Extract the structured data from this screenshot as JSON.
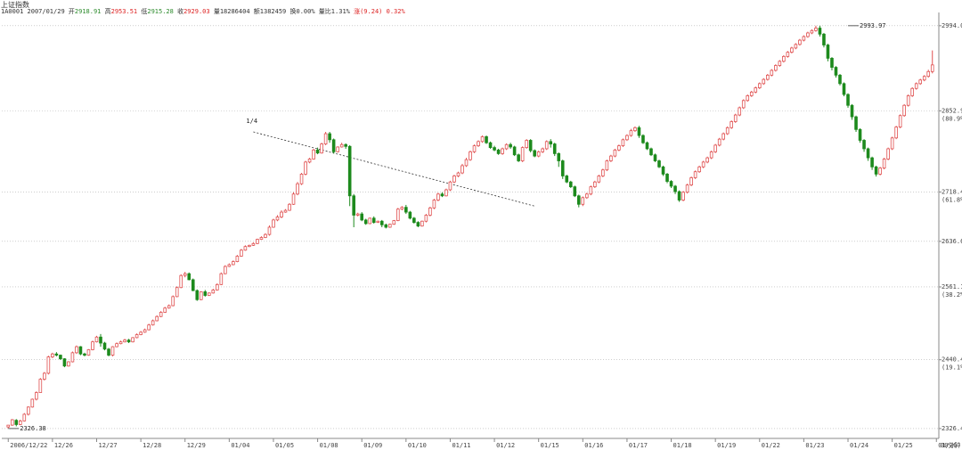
{
  "header": {
    "title": "上证指数",
    "code": "1A0001",
    "date": "2007/01/29",
    "open_label": "开",
    "open": "2918.91",
    "high_label": "高",
    "high": "2953.51",
    "low_label": "低",
    "low": "2915.28",
    "close_label": "收",
    "close": "2929.03",
    "volume_label": "量",
    "volume": "18286404",
    "amount_label": "额",
    "amount": "1382459",
    "chg_label": "换",
    "chg": "0.00%",
    "ratio_label": "量比",
    "ratio": "1.31%",
    "change_label": "涨",
    "change": "(9.24)",
    "change_pct": "0.32%"
  },
  "chart_data": {
    "type": "candlestick",
    "y_axis_ticks": [
      {
        "value": 2994.0,
        "label": "2994.0",
        "pct": ""
      },
      {
        "value": 2852.9,
        "label": "2852.9",
        "pct": "80.9%"
      },
      {
        "value": 2718.4,
        "label": "2718.4",
        "pct": "61.8%"
      },
      {
        "value": 2636.6,
        "label": "2636.6",
        "pct": ""
      },
      {
        "value": 2561.1,
        "label": "2561.1",
        "pct": "38.2%"
      },
      {
        "value": 2440.4,
        "label": "2440.4",
        "pct": "19.1%"
      },
      {
        "value": 2326.4,
        "label": "2326.4",
        "pct": ""
      }
    ],
    "ylim": [
      2310,
      3010
    ],
    "x_labels": [
      {
        "i": 0,
        "label": "2006/12/22"
      },
      {
        "i": 11,
        "label": "12/26"
      },
      {
        "i": 22,
        "label": "12/27"
      },
      {
        "i": 33,
        "label": "12/28"
      },
      {
        "i": 44,
        "label": "12/29"
      },
      {
        "i": 55,
        "label": "01/04"
      },
      {
        "i": 66,
        "label": "01/05"
      },
      {
        "i": 77,
        "label": "01/08"
      },
      {
        "i": 88,
        "label": "01/09"
      },
      {
        "i": 99,
        "label": "01/10"
      },
      {
        "i": 110,
        "label": "01/11"
      },
      {
        "i": 121,
        "label": "01/12"
      },
      {
        "i": 132,
        "label": "01/15"
      },
      {
        "i": 143,
        "label": "01/16"
      },
      {
        "i": 154,
        "label": "01/17"
      },
      {
        "i": 165,
        "label": "01/18"
      },
      {
        "i": 176,
        "label": "01/19"
      },
      {
        "i": 187,
        "label": "01/22"
      },
      {
        "i": 198,
        "label": "01/23"
      },
      {
        "i": 209,
        "label": "01/24"
      },
      {
        "i": 220,
        "label": "01/25"
      },
      {
        "i": 231,
        "label": "01/26"
      }
    ],
    "period_label": "30分钟",
    "annotations": [
      {
        "type": "max",
        "i": 209,
        "value": 2993.97,
        "label": "2993.97"
      },
      {
        "type": "min",
        "i": 0,
        "value": 2326.38,
        "label": "2326.38"
      }
    ],
    "trendline": {
      "start_i": 61,
      "start_v": 2818,
      "end_i": 131,
      "end_v": 2695,
      "label": "1/4"
    },
    "candles": [
      [
        2329,
        2332,
        2332,
        2327
      ],
      [
        2332,
        2341,
        2342,
        2331
      ],
      [
        2340,
        2333,
        2342,
        2330
      ],
      [
        2333,
        2339,
        2341,
        2332
      ],
      [
        2339,
        2350,
        2352,
        2338
      ],
      [
        2350,
        2362,
        2363,
        2348
      ],
      [
        2362,
        2375,
        2376,
        2361
      ],
      [
        2375,
        2386,
        2388,
        2373
      ],
      [
        2386,
        2408,
        2410,
        2386
      ],
      [
        2408,
        2418,
        2420,
        2406
      ],
      [
        2418,
        2445,
        2447,
        2416
      ],
      [
        2445,
        2450,
        2452,
        2443
      ],
      [
        2450,
        2448,
        2453,
        2446
      ],
      [
        2448,
        2442,
        2449,
        2440
      ],
      [
        2442,
        2430,
        2443,
        2428
      ],
      [
        2430,
        2437,
        2438,
        2429
      ],
      [
        2437,
        2452,
        2454,
        2436
      ],
      [
        2452,
        2462,
        2464,
        2450
      ],
      [
        2462,
        2450,
        2463,
        2448
      ],
      [
        2450,
        2448,
        2452,
        2446
      ],
      [
        2448,
        2457,
        2458,
        2447
      ],
      [
        2457,
        2470,
        2472,
        2456
      ],
      [
        2470,
        2478,
        2480,
        2469
      ],
      [
        2478,
        2468,
        2483,
        2462
      ],
      [
        2468,
        2458,
        2470,
        2456
      ],
      [
        2458,
        2448,
        2460,
        2446
      ],
      [
        2448,
        2462,
        2463,
        2446
      ],
      [
        2462,
        2467,
        2469,
        2461
      ],
      [
        2467,
        2470,
        2472,
        2466
      ],
      [
        2470,
        2473,
        2475,
        2469
      ],
      [
        2473,
        2470,
        2475,
        2468
      ],
      [
        2470,
        2477,
        2478,
        2469
      ],
      [
        2477,
        2482,
        2484,
        2476
      ],
      [
        2482,
        2486,
        2488,
        2481
      ],
      [
        2486,
        2490,
        2492,
        2485
      ],
      [
        2490,
        2498,
        2500,
        2489
      ],
      [
        2498,
        2505,
        2507,
        2497
      ],
      [
        2505,
        2512,
        2514,
        2504
      ],
      [
        2512,
        2519,
        2521,
        2511
      ],
      [
        2519,
        2526,
        2528,
        2518
      ],
      [
        2526,
        2530,
        2532,
        2525
      ],
      [
        2530,
        2545,
        2547,
        2529
      ],
      [
        2545,
        2560,
        2562,
        2544
      ],
      [
        2560,
        2580,
        2582,
        2559
      ],
      [
        2580,
        2583,
        2586,
        2577
      ],
      [
        2583,
        2573,
        2585,
        2572
      ],
      [
        2573,
        2555,
        2575,
        2554
      ],
      [
        2555,
        2540,
        2557,
        2538
      ],
      [
        2540,
        2553,
        2554,
        2539
      ],
      [
        2553,
        2547,
        2556,
        2545
      ],
      [
        2547,
        2551,
        2552,
        2546
      ],
      [
        2551,
        2556,
        2558,
        2550
      ],
      [
        2556,
        2565,
        2567,
        2555
      ],
      [
        2565,
        2583,
        2585,
        2564
      ],
      [
        2583,
        2595,
        2597,
        2582
      ],
      [
        2595,
        2598,
        2600,
        2594
      ],
      [
        2598,
        2603,
        2605,
        2597
      ],
      [
        2603,
        2612,
        2614,
        2602
      ],
      [
        2612,
        2622,
        2624,
        2611
      ],
      [
        2622,
        2628,
        2630,
        2621
      ],
      [
        2628,
        2630,
        2631,
        2627
      ],
      [
        2630,
        2633,
        2635,
        2629
      ],
      [
        2633,
        2640,
        2641,
        2632
      ],
      [
        2640,
        2643,
        2645,
        2639
      ],
      [
        2643,
        2648,
        2650,
        2642
      ],
      [
        2648,
        2660,
        2663,
        2646
      ],
      [
        2660,
        2672,
        2674,
        2659
      ],
      [
        2672,
        2677,
        2680,
        2670
      ],
      [
        2677,
        2685,
        2688,
        2675
      ],
      [
        2685,
        2688,
        2690,
        2684
      ],
      [
        2688,
        2698,
        2700,
        2687
      ],
      [
        2698,
        2715,
        2718,
        2697
      ],
      [
        2715,
        2732,
        2735,
        2713
      ],
      [
        2732,
        2748,
        2750,
        2730
      ],
      [
        2748,
        2768,
        2770,
        2746
      ],
      [
        2768,
        2773,
        2775,
        2766
      ],
      [
        2773,
        2788,
        2790,
        2772
      ],
      [
        2788,
        2783,
        2792,
        2781
      ],
      [
        2783,
        2798,
        2800,
        2782
      ],
      [
        2798,
        2815,
        2818,
        2796
      ],
      [
        2815,
        2805,
        2818,
        2800
      ],
      [
        2805,
        2785,
        2807,
        2782
      ],
      [
        2785,
        2793,
        2794,
        2784
      ],
      [
        2793,
        2797,
        2800,
        2792
      ],
      [
        2797,
        2794,
        2799,
        2790
      ],
      [
        2794,
        2712,
        2796,
        2695
      ],
      [
        2712,
        2680,
        2715,
        2660
      ],
      [
        2680,
        2682,
        2684,
        2678
      ],
      [
        2682,
        2672,
        2685,
        2670
      ],
      [
        2672,
        2666,
        2674,
        2664
      ],
      [
        2666,
        2675,
        2676,
        2665
      ],
      [
        2675,
        2668,
        2678,
        2666
      ],
      [
        2668,
        2670,
        2671,
        2667
      ],
      [
        2670,
        2664,
        2672,
        2660
      ],
      [
        2664,
        2660,
        2666,
        2658
      ],
      [
        2660,
        2665,
        2666,
        2659
      ],
      [
        2665,
        2671,
        2672,
        2664
      ],
      [
        2671,
        2690,
        2692,
        2670
      ],
      [
        2690,
        2693,
        2695,
        2688
      ],
      [
        2693,
        2685,
        2697,
        2682
      ],
      [
        2685,
        2675,
        2687,
        2673
      ],
      [
        2675,
        2668,
        2677,
        2666
      ],
      [
        2668,
        2662,
        2670,
        2660
      ],
      [
        2662,
        2670,
        2671,
        2661
      ],
      [
        2670,
        2680,
        2682,
        2668
      ],
      [
        2680,
        2692,
        2694,
        2678
      ],
      [
        2692,
        2705,
        2707,
        2690
      ],
      [
        2705,
        2715,
        2717,
        2703
      ],
      [
        2715,
        2712,
        2718,
        2710
      ],
      [
        2712,
        2722,
        2724,
        2711
      ],
      [
        2722,
        2735,
        2737,
        2720
      ],
      [
        2735,
        2745,
        2747,
        2733
      ],
      [
        2745,
        2750,
        2752,
        2743
      ],
      [
        2750,
        2762,
        2765,
        2748
      ],
      [
        2762,
        2772,
        2775,
        2760
      ],
      [
        2772,
        2785,
        2787,
        2770
      ],
      [
        2785,
        2795,
        2797,
        2783
      ],
      [
        2795,
        2802,
        2804,
        2793
      ],
      [
        2802,
        2810,
        2812,
        2800
      ],
      [
        2810,
        2800,
        2812,
        2798
      ],
      [
        2800,
        2792,
        2802,
        2790
      ],
      [
        2792,
        2788,
        2795,
        2786
      ],
      [
        2788,
        2782,
        2790,
        2780
      ],
      [
        2782,
        2790,
        2792,
        2780
      ],
      [
        2790,
        2797,
        2799,
        2788
      ],
      [
        2797,
        2793,
        2800,
        2790
      ],
      [
        2793,
        2780,
        2795,
        2778
      ],
      [
        2780,
        2770,
        2782,
        2768
      ],
      [
        2770,
        2792,
        2794,
        2768
      ],
      [
        2792,
        2804,
        2806,
        2790
      ],
      [
        2804,
        2787,
        2806,
        2784
      ],
      [
        2787,
        2778,
        2789,
        2776
      ],
      [
        2778,
        2785,
        2787,
        2776
      ],
      [
        2785,
        2790,
        2792,
        2783
      ],
      [
        2790,
        2802,
        2804,
        2788
      ],
      [
        2802,
        2798,
        2806,
        2792
      ],
      [
        2798,
        2782,
        2800,
        2778
      ],
      [
        2782,
        2770,
        2784,
        2760
      ],
      [
        2770,
        2745,
        2772,
        2740
      ],
      [
        2745,
        2735,
        2747,
        2733
      ],
      [
        2735,
        2727,
        2737,
        2725
      ],
      [
        2727,
        2712,
        2729,
        2710
      ],
      [
        2712,
        2698,
        2714,
        2693
      ],
      [
        2698,
        2709,
        2711,
        2695
      ],
      [
        2709,
        2715,
        2717,
        2707
      ],
      [
        2715,
        2727,
        2729,
        2713
      ],
      [
        2727,
        2735,
        2737,
        2725
      ],
      [
        2735,
        2745,
        2747,
        2733
      ],
      [
        2745,
        2755,
        2757,
        2743
      ],
      [
        2755,
        2770,
        2772,
        2753
      ],
      [
        2770,
        2778,
        2780,
        2768
      ],
      [
        2778,
        2788,
        2790,
        2776
      ],
      [
        2788,
        2795,
        2797,
        2786
      ],
      [
        2795,
        2805,
        2807,
        2793
      ],
      [
        2805,
        2812,
        2814,
        2803
      ],
      [
        2812,
        2820,
        2823,
        2810
      ],
      [
        2820,
        2825,
        2827,
        2818
      ],
      [
        2825,
        2812,
        2828,
        2808
      ],
      [
        2812,
        2800,
        2814,
        2798
      ],
      [
        2800,
        2790,
        2802,
        2788
      ],
      [
        2790,
        2780,
        2792,
        2778
      ],
      [
        2780,
        2770,
        2782,
        2768
      ],
      [
        2770,
        2760,
        2772,
        2758
      ],
      [
        2760,
        2748,
        2762,
        2745
      ],
      [
        2748,
        2736,
        2750,
        2733
      ],
      [
        2736,
        2728,
        2738,
        2725
      ],
      [
        2728,
        2719,
        2730,
        2715
      ],
      [
        2719,
        2705,
        2721,
        2702
      ],
      [
        2705,
        2718,
        2720,
        2703
      ],
      [
        2718,
        2730,
        2732,
        2716
      ],
      [
        2730,
        2742,
        2744,
        2728
      ],
      [
        2742,
        2752,
        2754,
        2740
      ],
      [
        2752,
        2760,
        2762,
        2750
      ],
      [
        2760,
        2768,
        2770,
        2758
      ],
      [
        2768,
        2775,
        2777,
        2766
      ],
      [
        2775,
        2785,
        2787,
        2773
      ],
      [
        2785,
        2796,
        2798,
        2783
      ],
      [
        2796,
        2806,
        2808,
        2794
      ],
      [
        2806,
        2815,
        2817,
        2804
      ],
      [
        2815,
        2825,
        2827,
        2813
      ],
      [
        2825,
        2835,
        2837,
        2823
      ],
      [
        2835,
        2846,
        2848,
        2833
      ],
      [
        2846,
        2858,
        2860,
        2844
      ],
      [
        2858,
        2870,
        2872,
        2856
      ],
      [
        2870,
        2878,
        2880,
        2868
      ],
      [
        2878,
        2884,
        2886,
        2876
      ],
      [
        2884,
        2891,
        2893,
        2882
      ],
      [
        2891,
        2898,
        2900,
        2889
      ],
      [
        2898,
        2905,
        2907,
        2896
      ],
      [
        2905,
        2912,
        2914,
        2903
      ],
      [
        2912,
        2920,
        2922,
        2910
      ],
      [
        2920,
        2928,
        2930,
        2918
      ],
      [
        2928,
        2935,
        2937,
        2926
      ],
      [
        2935,
        2943,
        2945,
        2933
      ],
      [
        2943,
        2950,
        2952,
        2941
      ],
      [
        2950,
        2957,
        2959,
        2948
      ],
      [
        2957,
        2963,
        2965,
        2955
      ],
      [
        2963,
        2970,
        2972,
        2961
      ],
      [
        2970,
        2976,
        2978,
        2968
      ],
      [
        2976,
        2982,
        2984,
        2974
      ],
      [
        2982,
        2986,
        2988,
        2980
      ],
      [
        2986,
        2990,
        2994,
        2984
      ],
      [
        2990,
        2980,
        2994,
        2976
      ],
      [
        2980,
        2962,
        2982,
        2958
      ],
      [
        2962,
        2940,
        2964,
        2935
      ],
      [
        2940,
        2925,
        2942,
        2920
      ],
      [
        2925,
        2912,
        2927,
        2908
      ],
      [
        2912,
        2898,
        2914,
        2895
      ],
      [
        2898,
        2880,
        2900,
        2877
      ],
      [
        2880,
        2862,
        2882,
        2858
      ],
      [
        2862,
        2843,
        2864,
        2838
      ],
      [
        2843,
        2822,
        2845,
        2818
      ],
      [
        2822,
        2804,
        2824,
        2800
      ],
      [
        2804,
        2790,
        2806,
        2785
      ],
      [
        2790,
        2775,
        2792,
        2770
      ],
      [
        2775,
        2760,
        2777,
        2755
      ],
      [
        2760,
        2748,
        2762,
        2744
      ],
      [
        2748,
        2758,
        2760,
        2746
      ],
      [
        2758,
        2773,
        2775,
        2756
      ],
      [
        2773,
        2790,
        2792,
        2771
      ],
      [
        2790,
        2808,
        2810,
        2788
      ],
      [
        2808,
        2826,
        2828,
        2806
      ],
      [
        2826,
        2845,
        2847,
        2824
      ],
      [
        2845,
        2862,
        2864,
        2843
      ],
      [
        2862,
        2878,
        2880,
        2860
      ],
      [
        2878,
        2890,
        2892,
        2876
      ],
      [
        2890,
        2898,
        2900,
        2888
      ],
      [
        2898,
        2904,
        2906,
        2896
      ],
      [
        2904,
        2910,
        2912,
        2902
      ],
      [
        2910,
        2918,
        2921,
        2908
      ],
      [
        2918,
        2929,
        2953,
        2915
      ]
    ]
  }
}
